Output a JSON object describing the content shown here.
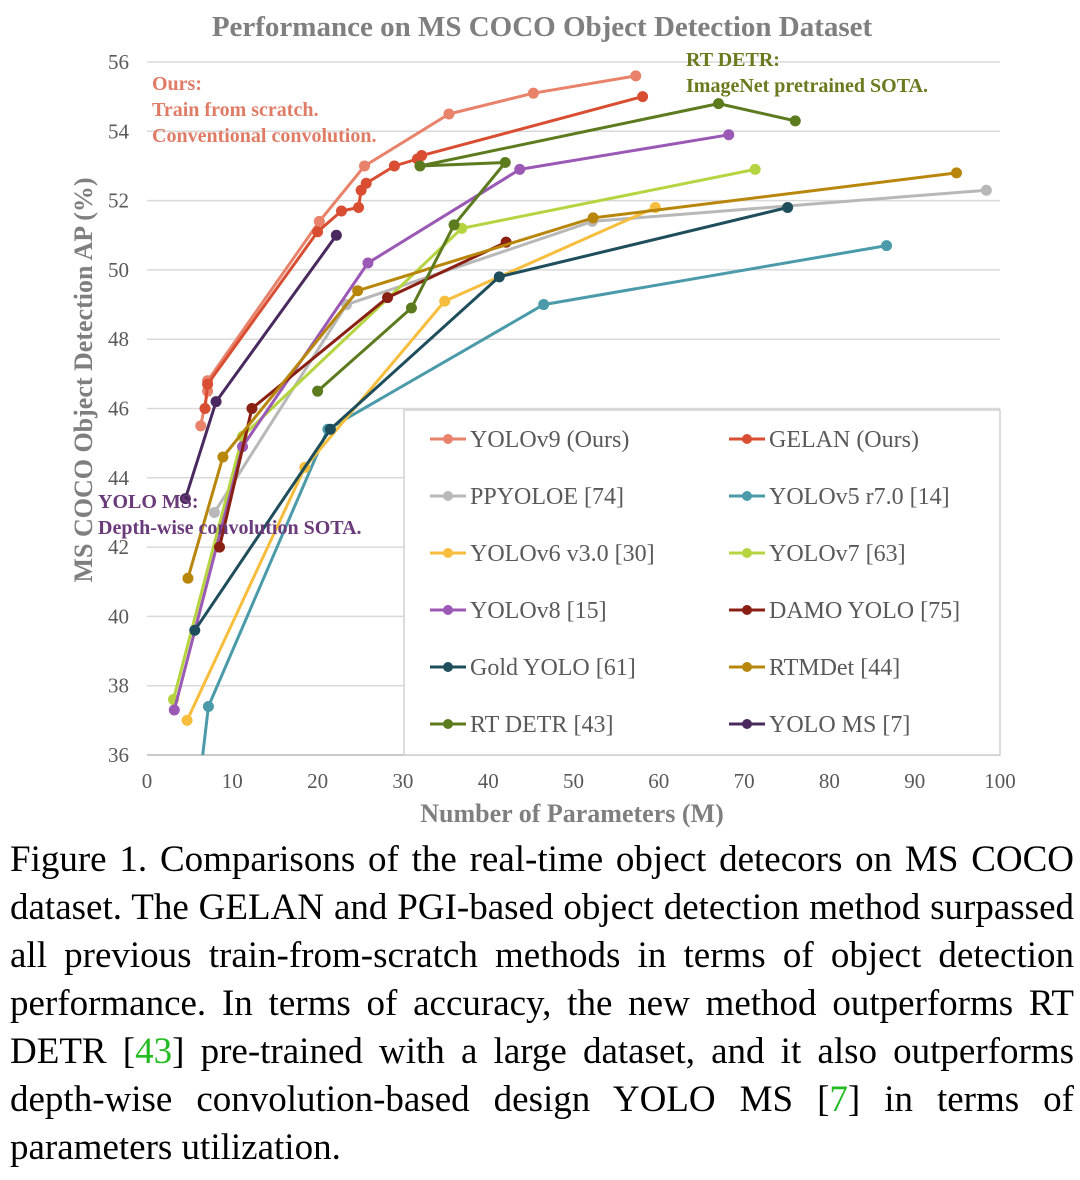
{
  "chart_data": {
    "type": "line",
    "title": "Performance on MS COCO Object Detection Dataset",
    "xlabel": "Number of Parameters (M)",
    "ylabel": "MS COCO Object Detection AP (%)",
    "xlim": [
      0,
      100
    ],
    "ylim": [
      36,
      56
    ],
    "xticks": [
      0,
      10,
      20,
      30,
      40,
      50,
      60,
      70,
      80,
      90,
      100
    ],
    "yticks": [
      36,
      38,
      40,
      42,
      44,
      46,
      48,
      50,
      52,
      54,
      56
    ],
    "grid": "horizontal",
    "legend_position": "lower-right",
    "annotations": {
      "ours": [
        "Ours:",
        "Train from scratch.",
        "Conventional convolution."
      ],
      "rtdetr": [
        "RT DETR:",
        "ImageNet pretrained SOTA."
      ],
      "yoloms": [
        "YOLO MS:",
        "Depth-wise convolution SOTA."
      ]
    },
    "annotation_colors": {
      "ours": "#e07b65",
      "rtdetr": "#6b7a1f",
      "yoloms": "#6a3a7a"
    },
    "series": [
      {
        "name": "YOLOv9 (Ours)",
        "color": "#e8826a",
        "points": [
          [
            6.3,
            45.5
          ],
          [
            7.1,
            46.5
          ],
          [
            7.1,
            46.8
          ],
          [
            20.2,
            51.4
          ],
          [
            25.5,
            53.0
          ],
          [
            35.4,
            54.5
          ],
          [
            45.3,
            55.1
          ],
          [
            57.3,
            55.6
          ]
        ]
      },
      {
        "name": "GELAN (Ours)",
        "color": "#d94e32",
        "points": [
          [
            6.8,
            46.0
          ],
          [
            7.1,
            46.7
          ],
          [
            20.0,
            51.1
          ],
          [
            22.8,
            51.7
          ],
          [
            24.8,
            51.8
          ],
          [
            25.1,
            52.3
          ],
          [
            25.7,
            52.5
          ],
          [
            29.0,
            53.0
          ],
          [
            31.7,
            53.2
          ],
          [
            32.2,
            53.3
          ],
          [
            58.1,
            55.0
          ]
        ]
      },
      {
        "name": "PPYOLOE [74]",
        "color": "#b8b8b8",
        "points": [
          [
            7.9,
            43.0
          ],
          [
            23.4,
            49.0
          ],
          [
            52.2,
            51.4
          ],
          [
            98.4,
            52.3
          ]
        ]
      },
      {
        "name": "YOLOv5 r7.0 [14]",
        "color": "#4a9aaa",
        "points": [
          [
            6.3,
            35.5
          ],
          [
            7.2,
            37.4
          ],
          [
            21.2,
            45.4
          ],
          [
            46.5,
            49.0
          ],
          [
            86.7,
            50.7
          ]
        ]
      },
      {
        "name": "YOLOv6 v3.0 [30]",
        "color": "#f7be3d",
        "points": [
          [
            4.7,
            37.0
          ],
          [
            18.5,
            44.3
          ],
          [
            34.9,
            49.1
          ],
          [
            59.6,
            51.8
          ]
        ]
      },
      {
        "name": "YOLOv7 [63]",
        "color": "#b5d440",
        "points": [
          [
            3.1,
            37.6
          ],
          [
            11.2,
            45.2
          ],
          [
            36.9,
            51.2
          ],
          [
            71.3,
            52.9
          ]
        ]
      },
      {
        "name": "YOLOv8 [15]",
        "color": "#9b59b6",
        "points": [
          [
            3.2,
            37.3
          ],
          [
            11.2,
            44.9
          ],
          [
            25.9,
            50.2
          ],
          [
            43.7,
            52.9
          ],
          [
            68.2,
            53.9
          ]
        ]
      },
      {
        "name": "DAMO YOLO [75]",
        "color": "#8a2014",
        "points": [
          [
            8.5,
            42.0
          ],
          [
            12.3,
            46.0
          ],
          [
            28.2,
            49.2
          ],
          [
            42.1,
            50.8
          ]
        ]
      },
      {
        "name": "Gold YOLO [61]",
        "color": "#1e4d5c",
        "points": [
          [
            5.6,
            39.6
          ],
          [
            21.5,
            45.4
          ],
          [
            41.3,
            49.8
          ],
          [
            75.1,
            51.8
          ]
        ]
      },
      {
        "name": "RTMDet [44]",
        "color": "#b8860b",
        "points": [
          [
            4.8,
            41.1
          ],
          [
            8.9,
            44.6
          ],
          [
            24.7,
            49.4
          ],
          [
            52.3,
            51.5
          ],
          [
            94.9,
            52.8
          ]
        ]
      },
      {
        "name": "RT DETR [43]",
        "color": "#5c7a1e",
        "points": [
          [
            20.0,
            46.5
          ],
          [
            31.0,
            48.9
          ],
          [
            36.0,
            51.3
          ],
          [
            42.0,
            53.1
          ],
          [
            32.0,
            53.0
          ],
          [
            67.0,
            54.8
          ],
          [
            76.0,
            54.3
          ]
        ]
      },
      {
        "name": "YOLO MS [7]",
        "color": "#4a2a5e",
        "points": [
          [
            4.5,
            43.4
          ],
          [
            8.1,
            46.2
          ],
          [
            22.2,
            51.0
          ]
        ]
      }
    ]
  },
  "caption": {
    "label": "Figure 1.",
    "part1": "Comparisons of the real-time object detecors on MS COCO dataset. The GELAN and PGI-based object detection method surpassed all previous train-from-scratch methods in terms of object detection performance. In terms of accuracy, the new method outperforms RT DETR [",
    "ref1": "43",
    "part2": "] pre-trained with a large dataset, and it also outperforms depth-wise convolution-based design YOLO MS [",
    "ref2": "7",
    "part3": "] in terms of parameters utilization."
  }
}
